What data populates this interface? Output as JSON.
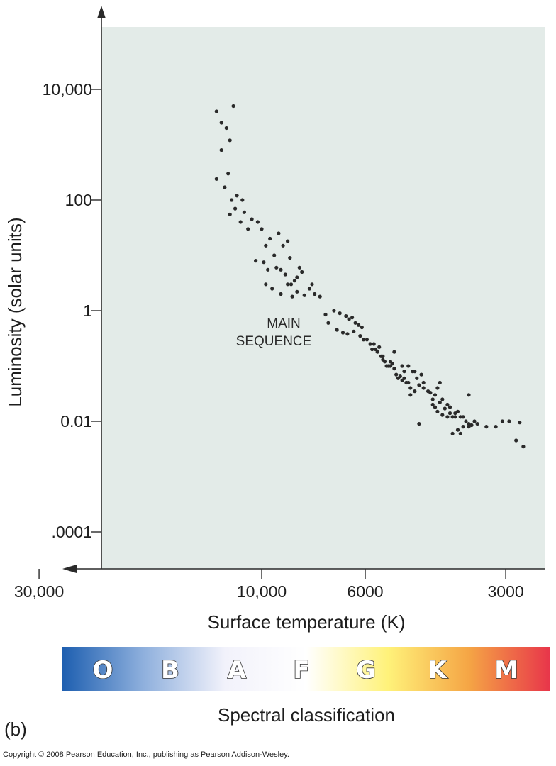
{
  "chart_data": {
    "type": "scatter",
    "title": "",
    "xlabel": "Surface temperature (K)",
    "ylabel": "Luminosity (solar units)",
    "x_scale": "log, reversed",
    "y_scale": "log",
    "x_ticks": [
      {
        "value": 30000,
        "label": "30,000"
      },
      {
        "value": 10000,
        "label": "10,000"
      },
      {
        "value": 6000,
        "label": "6000"
      },
      {
        "value": 3000,
        "label": "3000"
      }
    ],
    "y_ticks": [
      {
        "value": 10000,
        "label": "10,000"
      },
      {
        "value": 100,
        "label": "100"
      },
      {
        "value": 1,
        "label": "1"
      },
      {
        "value": 0.01,
        "label": "0.01"
      },
      {
        "value": 0.0001,
        "label": ".0001"
      }
    ],
    "annotation": [
      "MAIN",
      "SEQUENCE"
    ],
    "series": [
      {
        "name": "Main-sequence stars",
        "points": [
          [
            12500,
            4000
          ],
          [
            12200,
            2500
          ],
          [
            11900,
            2000
          ],
          [
            11500,
            5000
          ],
          [
            12200,
            800
          ],
          [
            11700,
            1200
          ],
          [
            12500,
            240
          ],
          [
            11800,
            300
          ],
          [
            12000,
            170
          ],
          [
            11600,
            100
          ],
          [
            11300,
            120
          ],
          [
            11000,
            100
          ],
          [
            11700,
            55
          ],
          [
            11400,
            70
          ],
          [
            11100,
            40
          ],
          [
            10900,
            60
          ],
          [
            10700,
            30
          ],
          [
            10500,
            45
          ],
          [
            10200,
            40
          ],
          [
            10000,
            30
          ],
          [
            9800,
            15
          ],
          [
            9600,
            20
          ],
          [
            9400,
            10
          ],
          [
            9200,
            25
          ],
          [
            9000,
            15
          ],
          [
            8800,
            18
          ],
          [
            8700,
            9
          ],
          [
            10300,
            8
          ],
          [
            9900,
            7.5
          ],
          [
            9700,
            5.5
          ],
          [
            9300,
            6
          ],
          [
            9100,
            5.5
          ],
          [
            8900,
            4.5
          ],
          [
            8650,
            3
          ],
          [
            8500,
            3.5
          ],
          [
            8400,
            4
          ],
          [
            8300,
            6
          ],
          [
            8200,
            5
          ],
          [
            9800,
            3
          ],
          [
            9500,
            2.5
          ],
          [
            9100,
            2
          ],
          [
            8800,
            3
          ],
          [
            8600,
            1.8
          ],
          [
            8400,
            2.2
          ],
          [
            8100,
            1.9
          ],
          [
            7900,
            2.5
          ],
          [
            7700,
            2
          ],
          [
            7500,
            1.8
          ],
          [
            7800,
            3
          ],
          [
            7300,
            0.85
          ],
          [
            7000,
            1
          ],
          [
            6800,
            0.9
          ],
          [
            6600,
            0.8
          ],
          [
            6500,
            0.7
          ],
          [
            6400,
            0.75
          ],
          [
            6300,
            0.6
          ],
          [
            6200,
            0.55
          ],
          [
            6100,
            0.5
          ],
          [
            7200,
            0.6
          ],
          [
            6900,
            0.45
          ],
          [
            6700,
            0.4
          ],
          [
            6550,
            0.38
          ],
          [
            6350,
            0.42
          ],
          [
            6150,
            0.35
          ],
          [
            6050,
            0.3
          ],
          [
            5950,
            0.3
          ],
          [
            5850,
            0.25
          ],
          [
            5750,
            0.25
          ],
          [
            5700,
            0.2
          ],
          [
            5650,
            0.18
          ],
          [
            5600,
            0.22
          ],
          [
            5550,
            0.15
          ],
          [
            5500,
            0.13
          ],
          [
            5450,
            0.12
          ],
          [
            5400,
            0.1
          ],
          [
            5350,
            0.1
          ],
          [
            5300,
            0.12
          ],
          [
            5250,
            0.11
          ],
          [
            5200,
            0.09
          ],
          [
            5150,
            0.07
          ],
          [
            5100,
            0.06
          ],
          [
            5050,
            0.065
          ],
          [
            5000,
            0.055
          ],
          [
            4950,
            0.06
          ],
          [
            4900,
            0.05
          ],
          [
            4850,
            0.05
          ],
          [
            4800,
            0.04
          ],
          [
            4800,
            0.03
          ],
          [
            4700,
            0.08
          ],
          [
            4600,
            0.045
          ],
          [
            4500,
            0.04
          ],
          [
            4400,
            0.035
          ],
          [
            4300,
            0.02
          ],
          [
            4250,
            0.03
          ],
          [
            4200,
            0.04
          ],
          [
            4150,
            0.05
          ],
          [
            4100,
            0.025
          ],
          [
            4000,
            0.02
          ],
          [
            3950,
            0.018
          ],
          [
            3850,
            0.014
          ],
          [
            3800,
            0.015
          ],
          [
            3750,
            0.012
          ],
          [
            3700,
            0.012
          ],
          [
            3650,
            0.01
          ],
          [
            3600,
            0.009
          ],
          [
            3550,
            0.0085
          ],
          [
            3500,
            0.01
          ],
          [
            3450,
            0.009
          ],
          [
            5800,
            0.2
          ],
          [
            5200,
            0.18
          ],
          [
            5000,
            0.1
          ],
          [
            4950,
            0.08
          ],
          [
            4850,
            0.1
          ],
          [
            4750,
            0.08
          ],
          [
            4650,
            0.06
          ],
          [
            4550,
            0.07
          ],
          [
            5500,
            0.15
          ],
          [
            5300,
            0.1
          ],
          [
            4200,
            0.015
          ],
          [
            4100,
            0.013
          ],
          [
            4000,
            0.012
          ],
          [
            3900,
            0.012
          ],
          [
            4700,
            0.035
          ],
          [
            4500,
            0.05
          ],
          [
            4300,
            0.025
          ],
          [
            4250,
            0.018
          ],
          [
            4150,
            0.022
          ],
          [
            4050,
            0.017
          ],
          [
            3950,
            0.014
          ],
          [
            3850,
            0.012
          ],
          [
            3700,
            0.008
          ],
          [
            3600,
            0.008
          ],
          [
            3300,
            0.008
          ],
          [
            3150,
            0.008
          ],
          [
            3050,
            0.01
          ],
          [
            2850,
            0.0045
          ],
          [
            2750,
            0.0035
          ],
          [
            4600,
            0.009
          ],
          [
            3900,
            0.006
          ],
          [
            3800,
            0.007
          ],
          [
            3750,
            0.006
          ],
          [
            4350,
            0.033
          ],
          [
            3600,
            0.03
          ],
          [
            2950,
            0.01
          ],
          [
            2800,
            0.0095
          ]
        ]
      }
    ]
  },
  "spectral_bar": {
    "letters": [
      "O",
      "B",
      "A",
      "F",
      "G",
      "K",
      "M"
    ],
    "colors": [
      "#1e5fb0",
      "#8fb0dd",
      "#f2f2fb",
      "#ffffff",
      "#fff27a",
      "#f5a545",
      "#e8354a"
    ]
  },
  "spectral_label": "Spectral classification",
  "panel_label": "(b)",
  "copyright": "Copyright © 2008 Pearson Education, Inc., publishing as Pearson Addison-Wesley.",
  "colors": {
    "plot_bg": "#e3ebe8",
    "point": "#2a2a2a",
    "axis": "#2a2a2a"
  }
}
